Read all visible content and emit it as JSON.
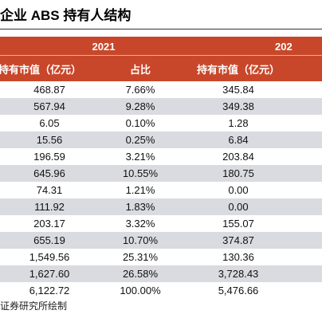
{
  "title": "企业 ABS 持有人结构",
  "header": {
    "year_left": "2021",
    "year_right": "202",
    "col_holding_left": "持有市值（亿元）",
    "col_share": "占比",
    "col_holding_right": "持有市值（亿元）"
  },
  "rows": [
    {
      "v2021": "468.87",
      "share": "7.66%",
      "v2022": "345.84"
    },
    {
      "v2021": "567.94",
      "share": "9.28%",
      "v2022": "349.38"
    },
    {
      "v2021": "6.05",
      "share": "0.10%",
      "v2022": "1.28"
    },
    {
      "v2021": "15.56",
      "share": "0.25%",
      "v2022": "6.84"
    },
    {
      "v2021": "196.59",
      "share": "3.21%",
      "v2022": "203.84"
    },
    {
      "v2021": "645.96",
      "share": "10.55%",
      "v2022": "180.75"
    },
    {
      "v2021": "74.31",
      "share": "1.21%",
      "v2022": "0.00"
    },
    {
      "v2021": "111.92",
      "share": "1.83%",
      "v2022": "0.00"
    },
    {
      "v2021": "203.17",
      "share": "3.32%",
      "v2022": "155.07"
    },
    {
      "v2021": "655.19",
      "share": "10.70%",
      "v2022": "374.87"
    },
    {
      "v2021": "1,549.56",
      "share": "25.31%",
      "v2022": "130.36"
    },
    {
      "v2021": "1,627.60",
      "share": "26.58%",
      "v2022": "3,728.43"
    },
    {
      "v2021": "6,122.72",
      "share": "100.00%",
      "v2022": "5,476.66"
    }
  ],
  "source": "证券研究所绘制",
  "colors": {
    "header_bg": "#c8472a",
    "stripe": "#d9dbe0"
  }
}
